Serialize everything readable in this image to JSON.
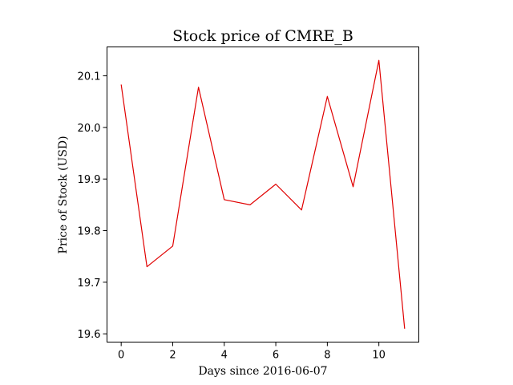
{
  "chart_data": {
    "type": "line",
    "title": "Stock price of CMRE_B",
    "xlabel": "Days since 2016-06-07",
    "ylabel": "Price of Stock (USD)",
    "x": [
      0,
      1,
      2,
      3,
      4,
      5,
      6,
      7,
      8,
      9,
      10,
      11
    ],
    "series": [
      {
        "color": "#e00000",
        "values": [
          20.083,
          19.73,
          19.77,
          20.078,
          19.86,
          19.85,
          19.89,
          19.84,
          20.06,
          19.885,
          20.13,
          19.61
        ]
      }
    ],
    "xlim": [
      -0.55,
      11.55
    ],
    "ylim": [
      19.584,
      20.156
    ],
    "xticks": [
      0,
      2,
      4,
      6,
      8,
      10
    ],
    "yticks": [
      19.6,
      19.7,
      19.8,
      19.9,
      20.0,
      20.1
    ],
    "ytick_labels": [
      "19.6",
      "19.7",
      "19.8",
      "19.9",
      "20.0",
      "20.1"
    ],
    "grid": false,
    "legend": "none"
  }
}
